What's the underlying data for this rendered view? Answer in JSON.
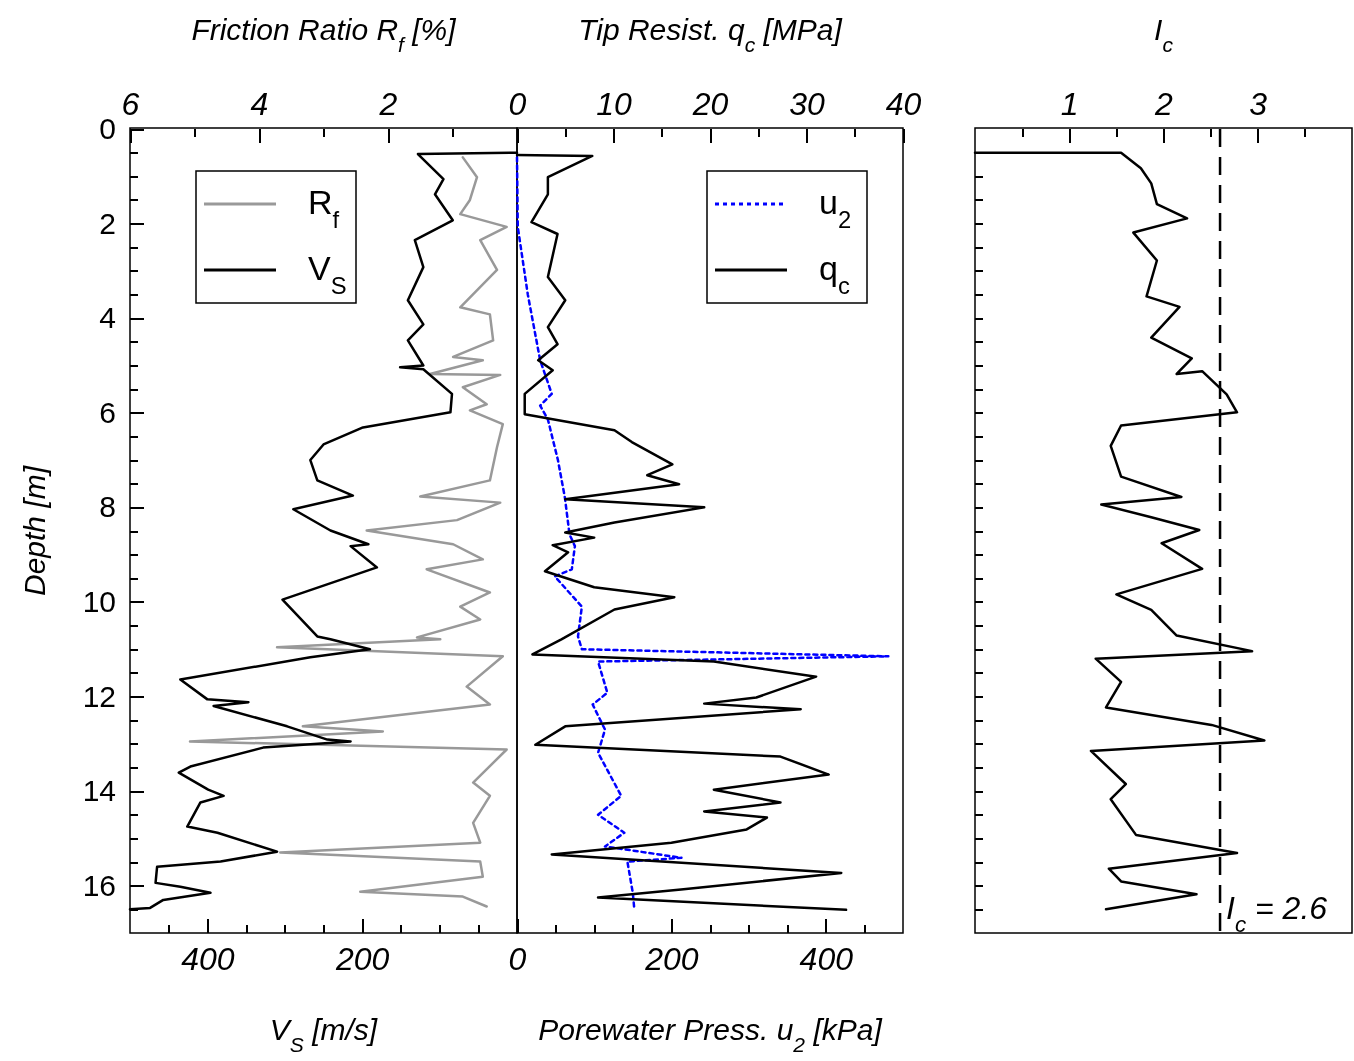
{
  "chart_data": [
    {
      "type": "line",
      "x2label": "Friction Ratio R$_{f}$ [%]",
      "xlabel": "V$_{S}$ [m/s]",
      "ylabel": "Depth [m]",
      "legend": "top left",
      "xlim": [
        500,
        0
      ],
      "xticks": [
        {
          "value": 450,
          "label": null
        },
        400,
        {
          "value": 350,
          "label": null
        },
        {
          "value": 300,
          "label": null
        },
        {
          "value": 250,
          "label": null
        },
        200,
        {
          "value": 150,
          "label": null
        },
        {
          "value": 100,
          "label": null
        },
        {
          "value": 50,
          "label": null
        }
      ],
      "x2lim": [
        6,
        0
      ],
      "x2ticks": [
        6,
        {
          "value": 5,
          "label": null
        },
        4,
        {
          "value": 3,
          "label": null
        },
        2,
        {
          "value": 1,
          "label": null
        }
      ],
      "ylim": [
        17,
        0
      ],
      "yticks": [
        0,
        {
          "value": 0.5,
          "label": null
        },
        {
          "value": 1,
          "label": null
        },
        {
          "value": 1.5,
          "label": null
        },
        2,
        {
          "value": 2.5,
          "label": null
        },
        {
          "value": 3,
          "label": null
        },
        {
          "value": 3.5,
          "label": null
        },
        4,
        {
          "value": 4.5,
          "label": null
        },
        {
          "value": 5,
          "label": null
        },
        {
          "value": 5.5,
          "label": null
        },
        6,
        {
          "value": 6.5,
          "label": null
        },
        {
          "value": 7,
          "label": null
        },
        {
          "value": 7.5,
          "label": null
        },
        8,
        {
          "value": 8.5,
          "label": null
        },
        {
          "value": 9,
          "label": null
        },
        {
          "value": 9.5,
          "label": null
        },
        10,
        {
          "value": 10.5,
          "label": null
        },
        {
          "value": 11,
          "label": null
        },
        {
          "value": 11.5,
          "label": null
        },
        12,
        {
          "value": 12.5,
          "label": null
        },
        {
          "value": 13,
          "label": null
        },
        {
          "value": 13.5,
          "label": null
        },
        14,
        {
          "value": 14.5,
          "label": null
        },
        {
          "value": 15,
          "label": null
        },
        {
          "value": 15.5,
          "label": null
        },
        16,
        {
          "value": 16.5,
          "label": null
        }
      ],
      "series": [
        {
          "name": "R$_{f}$",
          "color": "#999999",
          "axis": "x2",
          "x": [
            0.84,
            0.62,
            0.73,
            0.88,
            0.16,
            0.57,
            0.31,
            0.88,
            0.42,
            0.37,
            0.99,
            0.53,
            1.35,
            0.26,
            0.84,
            0.47,
            0.73,
            0.22,
            0.31,
            0.42,
            1.5,
            0.26,
            0.93,
            2.33,
            0.99,
            0.53,
            1.4,
            0.42,
            0.88,
            0.57,
            1.55,
            1.19,
            3.72,
            0.22,
            0.78,
            0.42,
            3.32,
            2.08,
            5.07,
            0.16,
            0.68,
            0.42,
            0.68,
            0.57,
            3.67,
            0.57,
            0.53,
            2.43,
            0.84,
            0.47
          ],
          "values": [
            0.6,
            1.02,
            1.5,
            1.8,
            2.07,
            2.35,
            2.98,
            3.77,
            3.92,
            4.47,
            4.82,
            4.89,
            5.18,
            5.2,
            5.46,
            5.82,
            5.95,
            6.24,
            6.73,
            7.43,
            7.77,
            7.9,
            8.27,
            8.49,
            8.78,
            9.1,
            9.31,
            9.8,
            10.1,
            10.37,
            10.75,
            10.79,
            10.96,
            11.15,
            11.79,
            12.17,
            12.63,
            12.74,
            12.95,
            13.12,
            13.82,
            14.1,
            14.67,
            15.09,
            15.3,
            15.49,
            15.81,
            16.13,
            16.23,
            16.44
          ]
        },
        {
          "name": "V$_{S}$",
          "color": "#000000",
          "x": [
            0,
            128,
            95,
            106,
            83,
            132,
            121,
            141,
            121,
            141,
            121,
            151,
            121,
            84,
            86,
            199,
            250,
            267,
            258,
            212,
            289,
            241,
            192,
            215,
            181,
            303,
            258,
            241,
            190,
            267,
            435,
            400,
            347,
            392,
            297,
            245,
            215,
            328,
            422,
            437,
            399,
            379,
            409,
            426,
            387,
            310,
            383,
            465,
            467,
            435,
            396,
            457,
            474,
            500
          ],
          "values": [
            0.5,
            0.53,
            1.06,
            1.38,
            1.93,
            2.35,
            2.92,
            3.62,
            4.13,
            4.47,
            5.0,
            5.04,
            5.08,
            5.6,
            5.99,
            6.31,
            6.67,
            7.0,
            7.43,
            7.75,
            8.04,
            8.49,
            8.78,
            8.82,
            9.27,
            9.95,
            10.73,
            10.79,
            11.0,
            11.17,
            11.64,
            12.06,
            12.12,
            12.2,
            12.63,
            12.91,
            12.95,
            13.08,
            13.48,
            13.61,
            13.97,
            14.1,
            14.24,
            14.75,
            14.88,
            15.28,
            15.49,
            15.6,
            15.94,
            16.02,
            16.15,
            16.3,
            16.47,
            16.5
          ]
        }
      ]
    },
    {
      "type": "line",
      "x2label": "Tip Resist. q$_{c}$ [MPa]",
      "xlabel": "Porewater Press. u$_{2}$ [kPa]",
      "legend": "top right",
      "tick_labels": "x",
      "xlim": [
        0,
        500
      ],
      "xticks": [
        0,
        {
          "value": 50,
          "label": null
        },
        {
          "value": 100,
          "label": null
        },
        {
          "value": 150,
          "label": null
        },
        200,
        {
          "value": 250,
          "label": null
        },
        {
          "value": 300,
          "label": null
        },
        {
          "value": 350,
          "label": null
        },
        400,
        {
          "value": 450,
          "label": null
        }
      ],
      "x2lim": [
        0,
        40
      ],
      "x2ticks": [
        0,
        {
          "value": 5,
          "label": null
        },
        10,
        {
          "value": 15,
          "label": null
        },
        20,
        {
          "value": 25,
          "label": null
        },
        30,
        {
          "value": 35,
          "label": null
        },
        40
      ],
      "ylim": [
        17,
        0
      ],
      "series": [
        {
          "name": "u$_{2}$",
          "color": "#0000ff",
          "line_style": "dotted",
          "x": [
            0,
            1,
            14,
            30,
            45,
            30,
            40,
            53,
            62,
            68,
            75,
            71,
            49,
            84,
            79,
            84,
            481,
            105,
            117,
            98,
            114,
            105,
            135,
            105,
            139,
            114,
            213,
            143,
            150,
            152
          ],
          "values": [
            0.6,
            2.07,
            3.5,
            4.89,
            5.6,
            5.85,
            6.14,
            7.0,
            7.79,
            8.57,
            8.82,
            9.31,
            9.46,
            10.1,
            10.73,
            11.0,
            11.15,
            11.26,
            11.92,
            12.17,
            12.7,
            13.19,
            14.1,
            14.5,
            14.88,
            15.17,
            15.41,
            15.49,
            16.15,
            16.5
          ]
        },
        {
          "name": "q$_{c}$",
          "color": "#000000",
          "axis": "x2",
          "x": [
            0,
            7.8,
            3.2,
            3.2,
            1.5,
            4.2,
            3.2,
            5.0,
            3.2,
            4.2,
            2.2,
            3.7,
            0.8,
            0.8,
            10.1,
            11.9,
            16.1,
            13.5,
            16.8,
            5.0,
            19.4,
            10.1,
            5.0,
            8.0,
            3.7,
            5.3,
            2.9,
            8.0,
            16.3,
            10.1,
            4.6,
            1.6,
            20.4,
            31.0,
            24.8,
            19.4,
            29.4,
            5.0,
            1.9,
            27.3,
            32.3,
            20.4,
            27.3,
            19.4,
            25.9,
            23.8,
            16.0,
            3.6,
            33.6,
            17.0,
            8.4,
            34.1
          ],
          "values": [
            0.55,
            0.57,
            1.02,
            1.38,
            1.97,
            2.22,
            3.13,
            3.62,
            4.19,
            4.55,
            4.89,
            5.1,
            5.6,
            6.03,
            6.37,
            6.62,
            7.09,
            7.32,
            7.51,
            7.83,
            8.0,
            8.32,
            8.53,
            8.64,
            8.8,
            8.95,
            9.35,
            9.69,
            9.9,
            10.16,
            10.79,
            11.11,
            11.26,
            11.58,
            12.02,
            12.15,
            12.27,
            12.63,
            13.02,
            13.27,
            13.65,
            13.97,
            14.24,
            14.43,
            14.56,
            14.81,
            15.09,
            15.34,
            15.73,
            16.08,
            16.25,
            16.51
          ]
        }
      ]
    },
    {
      "type": "line",
      "xlabel": "I$_{c}$",
      "tick_labels": "x",
      "xlim": [
        0,
        4
      ],
      "xticks": [
        {
          "value": 0.5,
          "label": null
        },
        1,
        {
          "value": 1.5,
          "label": null
        },
        2,
        {
          "value": 2.5,
          "label": null
        },
        3,
        {
          "value": 3.5,
          "label": null
        }
      ],
      "ylim": [
        17,
        0
      ],
      "yticks": [
        {
          "value": 0.5,
          "label": null
        },
        {
          "value": 1,
          "label": null
        },
        {
          "value": 1.5,
          "label": null
        },
        {
          "value": 2,
          "label": null
        },
        {
          "value": 2.5,
          "label": null
        },
        {
          "value": 3,
          "label": null
        },
        {
          "value": 3.5,
          "label": null
        },
        {
          "value": 4,
          "label": null
        },
        {
          "value": 4.5,
          "label": null
        },
        {
          "value": 5,
          "label": null
        },
        {
          "value": 5.5,
          "label": null
        },
        {
          "value": 6,
          "label": null
        },
        {
          "value": 6.5,
          "label": null
        },
        {
          "value": 7,
          "label": null
        },
        {
          "value": 7.5,
          "label": null
        },
        {
          "value": 8,
          "label": null
        },
        {
          "value": 8.5,
          "label": null
        },
        {
          "value": 9,
          "label": null
        },
        {
          "value": 9.5,
          "label": null
        },
        {
          "value": 10,
          "label": null
        },
        {
          "value": 10.5,
          "label": null
        },
        {
          "value": 11,
          "label": null
        },
        {
          "value": 11.5,
          "label": null
        },
        {
          "value": 12,
          "label": null
        },
        {
          "value": 12.5,
          "label": null
        },
        {
          "value": 13,
          "label": null
        },
        {
          "value": 13.5,
          "label": null
        },
        {
          "value": 14,
          "label": null
        },
        {
          "value": 14.5,
          "label": null
        },
        {
          "value": 15,
          "label": null
        },
        {
          "value": 15.5,
          "label": null
        },
        {
          "value": 16,
          "label": null
        },
        {
          "value": 16.5,
          "label": null
        }
      ],
      "ref_lines": [
        {
          "axis": "x",
          "value": 2.6,
          "label": "I$_{c}$ = 2.6",
          "color": "#000000",
          "line_style": "dashed"
        }
      ],
      "series": [
        {
          "color": "#000000",
          "x": [
            0,
            1.55,
            1.76,
            1.87,
            1.93,
            2.25,
            1.68,
            1.93,
            1.82,
            2.17,
            1.87,
            2.3,
            2.14,
            2.41,
            2.67,
            2.78,
            1.55,
            1.44,
            1.55,
            2.19,
            1.34,
            1.87,
            2.38,
            1.98,
            2.41,
            1.5,
            1.87,
            2.14,
            2.94,
            1.28,
            1.55,
            1.39,
            2.51,
            3.07,
            1.23,
            1.6,
            1.44,
            1.71,
            2.78,
            1.42,
            1.55,
            2.35,
            1.39
          ],
          "values": [
            0.5,
            0.5,
            0.83,
            1.15,
            1.59,
            1.89,
            2.19,
            2.78,
            3.54,
            3.76,
            4.41,
            4.85,
            5.18,
            5.12,
            5.61,
            5.99,
            6.27,
            6.7,
            7.35,
            7.78,
            7.94,
            8.21,
            8.48,
            8.76,
            9.3,
            9.84,
            10.17,
            10.71,
            11.04,
            11.2,
            11.69,
            12.23,
            12.6,
            12.93,
            13.15,
            13.85,
            14.17,
            14.93,
            15.31,
            15.64,
            15.91,
            16.18,
            16.5
          ]
        }
      ]
    }
  ]
}
